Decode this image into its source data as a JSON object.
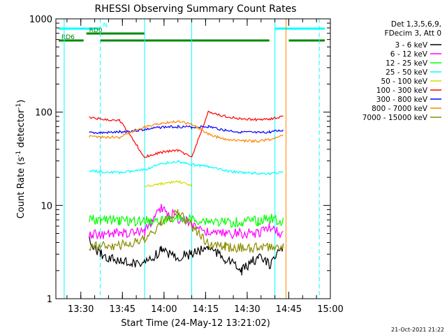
{
  "chart_data": {
    "type": "line",
    "title": "RHESSI Observing Summary Count Rates",
    "xlabel": "Start Time (24-May-12 13:21:02)",
    "ylabel": "Count Rate (s⁻¹ detector⁻¹)",
    "x_axis": {
      "start": "13:21:02",
      "range": [
        "13:21",
        "15:00"
      ],
      "ticks": [
        "13:30",
        "13:45",
        "14:00",
        "14:15",
        "14:30",
        "14:45",
        "15:00"
      ]
    },
    "y_axis": {
      "scale": "log",
      "range": [
        1,
        1000
      ],
      "ticks": [
        {
          "value": 1,
          "label": "1"
        },
        {
          "value": 10,
          "label": "10"
        },
        {
          "value": 100,
          "label": "100"
        },
        {
          "value": 1000,
          "label": "1000"
        }
      ]
    },
    "legend_header": [
      "Det 1,3,5,6,9,",
      "FDecim 3, Att 0"
    ],
    "legend_position": "right",
    "series": [
      {
        "name": "3 - 6 keV",
        "color": "#000000",
        "points": [
          [
            "13:33",
            4.2
          ],
          [
            "13:37",
            3.0
          ],
          [
            "13:44",
            2.5
          ],
          [
            "13:53",
            2.4
          ],
          [
            "13:59",
            3.3
          ],
          [
            "14:05",
            2.8
          ],
          [
            "14:10",
            3.0
          ],
          [
            "14:16",
            3.6
          ],
          [
            "14:22",
            2.7
          ],
          [
            "14:28",
            2.0
          ],
          [
            "14:34",
            2.8
          ],
          [
            "14:38",
            2.3
          ],
          [
            "14:43",
            3.5
          ]
        ]
      },
      {
        "name": "6 - 12 keV",
        "color": "#ff00ff",
        "points": [
          [
            "13:33",
            5.0
          ],
          [
            "13:37",
            4.9
          ],
          [
            "13:44",
            5.0
          ],
          [
            "13:53",
            5.2
          ],
          [
            "13:59",
            9.5
          ],
          [
            "14:05",
            7.3
          ],
          [
            "14:10",
            6.5
          ],
          [
            "14:16",
            5.0
          ],
          [
            "14:22",
            5.0
          ],
          [
            "14:28",
            5.0
          ],
          [
            "14:34",
            5.1
          ],
          [
            "14:38",
            6.0
          ],
          [
            "14:43",
            4.8
          ]
        ]
      },
      {
        "name": "12 - 25 keV",
        "color": "#00ff00",
        "points": [
          [
            "13:33",
            7.0
          ],
          [
            "13:37",
            7.0
          ],
          [
            "13:44",
            6.9
          ],
          [
            "13:53",
            6.8
          ],
          [
            "13:59",
            7.0
          ],
          [
            "14:05",
            7.2
          ],
          [
            "14:10",
            7.0
          ],
          [
            "14:16",
            6.8
          ],
          [
            "14:22",
            6.6
          ],
          [
            "14:28",
            6.6
          ],
          [
            "14:34",
            6.8
          ],
          [
            "14:38",
            7.3
          ],
          [
            "14:43",
            6.8
          ]
        ]
      },
      {
        "name": "25 - 50 keV",
        "color": "#00ffff",
        "points": [
          [
            "13:33",
            23.5
          ],
          [
            "13:37",
            23.0
          ],
          [
            "13:44",
            22.5
          ],
          [
            "13:53",
            24.0
          ],
          [
            "13:59",
            28.0
          ],
          [
            "14:05",
            29.5
          ],
          [
            "14:10",
            27.5
          ],
          [
            "14:16",
            26.0
          ],
          [
            "14:22",
            23.5
          ],
          [
            "14:28",
            22.5
          ],
          [
            "14:34",
            22.0
          ],
          [
            "14:38",
            22.0
          ],
          [
            "14:43",
            22.5
          ]
        ]
      },
      {
        "name": "50 - 100 keV",
        "color": "#d8d800",
        "points": [
          [
            "13:53",
            16.0
          ],
          [
            "13:59",
            17.0
          ],
          [
            "14:05",
            18.0
          ],
          [
            "14:10",
            16.5
          ]
        ]
      },
      {
        "name": "100 - 300 keV",
        "color": "#ff0000",
        "points": [
          [
            "13:33",
            88.0
          ],
          [
            "13:37",
            84.0
          ],
          [
            "13:44",
            82.0
          ],
          [
            "13:53",
            33.0
          ],
          [
            "13:59",
            37.0
          ],
          [
            "14:05",
            39.0
          ],
          [
            "14:10",
            33.0
          ],
          [
            "14:16",
            100.0
          ],
          [
            "14:22",
            90.0
          ],
          [
            "14:28",
            85.0
          ],
          [
            "14:34",
            83.0
          ],
          [
            "14:38",
            84.0
          ],
          [
            "14:43",
            90.0
          ]
        ]
      },
      {
        "name": "300 - 800 keV",
        "color": "#0000ff",
        "points": [
          [
            "13:33",
            60.0
          ],
          [
            "13:37",
            60.0
          ],
          [
            "13:44",
            61.0
          ],
          [
            "13:53",
            65.0
          ],
          [
            "13:59",
            69.0
          ],
          [
            "14:05",
            70.0
          ],
          [
            "14:10",
            69.0
          ],
          [
            "14:16",
            70.0
          ],
          [
            "14:22",
            64.0
          ],
          [
            "14:28",
            61.0
          ],
          [
            "14:34",
            60.0
          ],
          [
            "14:38",
            61.0
          ],
          [
            "14:43",
            64.0
          ]
        ]
      },
      {
        "name": "800 - 7000 keV",
        "color": "#ff8800",
        "points": [
          [
            "13:33",
            55.0
          ],
          [
            "13:37",
            54.0
          ],
          [
            "13:44",
            54.0
          ],
          [
            "13:53",
            70.0
          ],
          [
            "13:59",
            76.0
          ],
          [
            "14:05",
            80.0
          ],
          [
            "14:10",
            74.0
          ],
          [
            "14:16",
            58.0
          ],
          [
            "14:22",
            51.0
          ],
          [
            "14:28",
            49.0
          ],
          [
            "14:34",
            49.0
          ],
          [
            "14:38",
            51.0
          ],
          [
            "14:43",
            56.0
          ]
        ]
      },
      {
        "name": "7000 - 15000 keV",
        "color": "#8b8b00",
        "points": [
          [
            "13:33",
            3.6
          ],
          [
            "13:37",
            3.7
          ],
          [
            "13:44",
            3.7
          ],
          [
            "13:53",
            4.2
          ],
          [
            "13:59",
            6.5
          ],
          [
            "14:05",
            8.2
          ],
          [
            "14:10",
            6.0
          ],
          [
            "14:16",
            3.8
          ],
          [
            "14:22",
            3.6
          ],
          [
            "14:28",
            3.5
          ],
          [
            "14:34",
            3.5
          ],
          [
            "14:38",
            3.6
          ],
          [
            "14:43",
            3.7
          ]
        ]
      }
    ],
    "vertical_lines": [
      {
        "time": "13:24",
        "color": "#00ffff",
        "style": "solid"
      },
      {
        "time": "13:37",
        "color": "#00ffff",
        "style": "dashed"
      },
      {
        "time": "13:53",
        "color": "#00ffff",
        "style": "solid"
      },
      {
        "time": "14:10",
        "color": "#00ffff",
        "style": "solid"
      },
      {
        "time": "14:40",
        "color": "#00ffff",
        "style": "solid"
      },
      {
        "time": "14:44",
        "color": "#ff8800",
        "style": "solid"
      },
      {
        "time": "14:56",
        "color": "#00ffff",
        "style": "dashed"
      }
    ],
    "flag_bars": [
      {
        "label": "N",
        "color": "#00ffff",
        "segments": [
          [
            "13:22",
            "13:37"
          ],
          [
            "14:40",
            "14:58"
          ]
        ]
      },
      {
        "label": "RD0",
        "color": "#008800",
        "segments": [
          [
            "13:32",
            "13:53"
          ]
        ]
      },
      {
        "label": "RD6",
        "color": "#008800",
        "segments": [
          [
            "13:22",
            "13:31"
          ],
          [
            "13:37",
            "13:54"
          ],
          [
            "14:10",
            "14:38"
          ]
        ]
      },
      {
        "label": "",
        "color": "#008800",
        "segments": [
          [
            "13:53",
            "14:10"
          ],
          [
            "14:45",
            "14:58"
          ]
        ]
      }
    ],
    "footer_date": "21-Oct-2021 21:22"
  }
}
